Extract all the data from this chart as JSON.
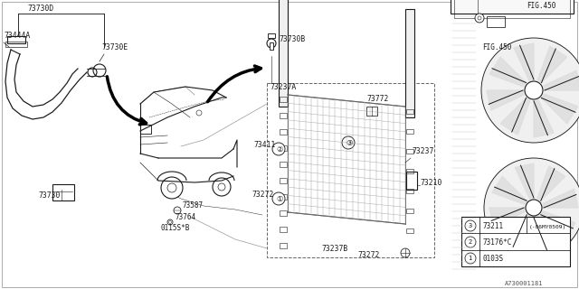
{
  "bg_color": "#ffffff",
  "col": "#1a1a1a",
  "legend": [
    {
      "num": "1",
      "code": "0103S",
      "note": ""
    },
    {
      "num": "2",
      "code": "73176*C",
      "note": ""
    },
    {
      "num": "3",
      "code": "73211",
      "note": "(-06MY0509)"
    }
  ],
  "corner_code": "A730001181"
}
